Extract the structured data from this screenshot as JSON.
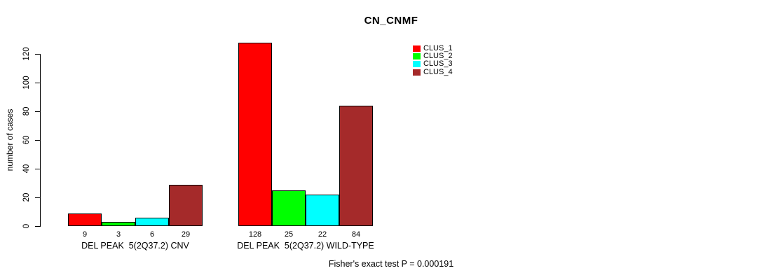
{
  "title": "CN_CNMF",
  "y_axis": {
    "label": "number of cases",
    "ticks": [
      0,
      20,
      40,
      60,
      80,
      100,
      120
    ]
  },
  "legend": {
    "items": [
      {
        "label": "CLUS_1",
        "color": "#ff0000"
      },
      {
        "label": "CLUS_2",
        "color": "#00ff00"
      },
      {
        "label": "CLUS_3",
        "color": "#00ffff"
      },
      {
        "label": "CLUS_4",
        "color": "#a52a2a"
      }
    ]
  },
  "footer": "Fisher's exact test P = 0.000191",
  "chart_data": {
    "type": "bar",
    "title": "CN_CNMF",
    "xlabel": "",
    "ylabel": "number of cases",
    "ylim": [
      0,
      130
    ],
    "yticks": [
      0,
      20,
      40,
      60,
      80,
      100,
      120
    ],
    "grid": false,
    "legend_position": "top-right-inside",
    "categories": [
      "DEL PEAK  5(2Q37.2) CNV",
      "DEL PEAK  5(2Q37.2) WILD-TYPE"
    ],
    "series": [
      {
        "name": "CLUS_1",
        "color": "#ff0000",
        "values": [
          9,
          128
        ]
      },
      {
        "name": "CLUS_2",
        "color": "#00ff00",
        "values": [
          3,
          25
        ]
      },
      {
        "name": "CLUS_3",
        "color": "#00ffff",
        "values": [
          6,
          22
        ]
      },
      {
        "name": "CLUS_4",
        "color": "#a52a2a",
        "values": [
          29,
          84
        ]
      }
    ],
    "bar_value_labels": [
      [
        9,
        3,
        6,
        29
      ],
      [
        128,
        25,
        22,
        84
      ]
    ],
    "annotation": "Fisher's exact test P = 0.000191"
  }
}
